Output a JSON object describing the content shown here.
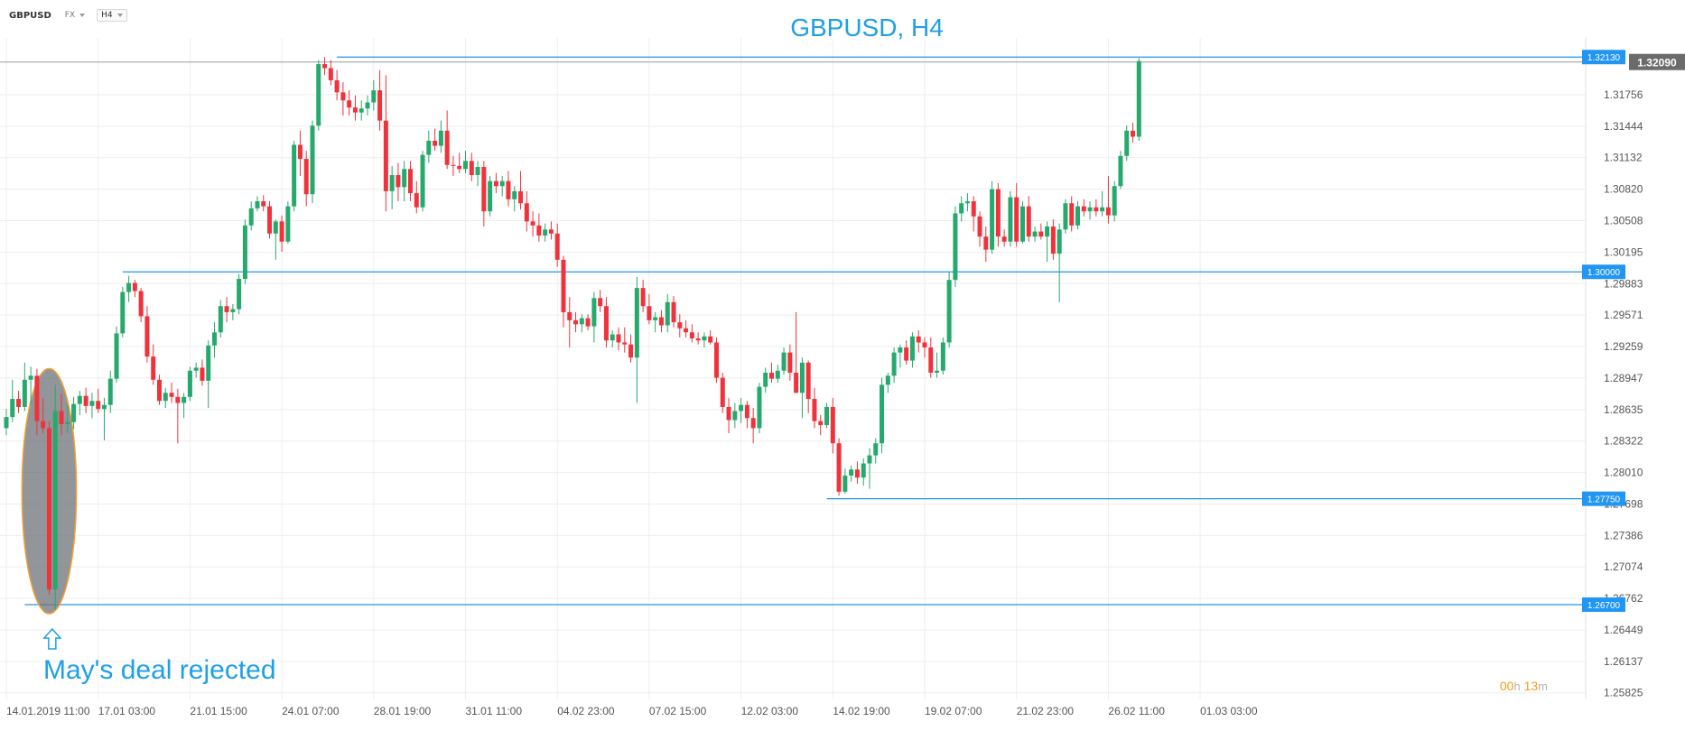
{
  "toolbar": {
    "symbol": "GBPUSD",
    "market": "FX",
    "timeframe": "H4"
  },
  "countdown": {
    "hours": "00",
    "hours_unit": "h",
    "minutes": "13",
    "minutes_unit": "m"
  },
  "colors": {
    "bull": "#26a96c",
    "bear": "#f0323c",
    "level": "#2196f3",
    "title": "#1ea0e6",
    "grid": "#eeeeee",
    "axis_text": "#555555",
    "highlight_fill": "#6e7378",
    "highlight_stroke": "#f0a030"
  },
  "chart_data": {
    "type": "candlestick",
    "title": "GBPUSD, H4",
    "xlabel": "",
    "ylabel": "",
    "ylim": [
      1.2576,
      1.3232
    ],
    "grid": true,
    "y_ticks": [
      "1.31756",
      "1.31444",
      "1.31132",
      "1.30820",
      "1.30508",
      "1.30195",
      "1.29883",
      "1.29571",
      "1.29259",
      "1.28947",
      "1.28635",
      "1.28322",
      "1.28010",
      "1.27698",
      "1.27386",
      "1.27074",
      "1.26762",
      "1.26449",
      "1.26137",
      "1.25825"
    ],
    "x_ticks": [
      {
        "i": 0,
        "label": "14.01.2019  11:00"
      },
      {
        "i": 15,
        "label": "17.01  03:00"
      },
      {
        "i": 30,
        "label": "21.01  15:00"
      },
      {
        "i": 45,
        "label": "24.01  07:00"
      },
      {
        "i": 60,
        "label": "28.01  19:00"
      },
      {
        "i": 75,
        "label": "31.01  11:00"
      },
      {
        "i": 90,
        "label": "04.02  23:00"
      },
      {
        "i": 105,
        "label": "07.02  15:00"
      },
      {
        "i": 120,
        "label": "12.02  03:00"
      },
      {
        "i": 135,
        "label": "14.02  19:00"
      },
      {
        "i": 150,
        "label": "19.02  07:00"
      },
      {
        "i": 165,
        "label": "21.02  23:00"
      },
      {
        "i": 180,
        "label": "26.02  11:00"
      },
      {
        "i": 195,
        "label": "01.03  03:00"
      }
    ],
    "current_price": {
      "label": "1.32090",
      "value": 1.3209
    },
    "levels": [
      {
        "value": 1.3213,
        "label": "1.32130",
        "from_i": 54
      },
      {
        "value": 1.3,
        "label": "1.30000",
        "from_i": 19
      },
      {
        "value": 1.2775,
        "label": "1.27750",
        "from_i": 134
      },
      {
        "value": 1.267,
        "label": "1.26700",
        "from_i": 3
      }
    ],
    "annotation": {
      "text": "May's deal rejected",
      "i_from": 3,
      "i_to": 11,
      "y_top": 1.2904,
      "y_bottom": 1.2661,
      "arrow_i": 7.5
    },
    "candles": [
      [
        1.2845,
        1.2864,
        1.2838,
        1.2856
      ],
      [
        1.2856,
        1.2893,
        1.2851,
        1.2874
      ],
      [
        1.2874,
        1.2882,
        1.286,
        1.2866
      ],
      [
        1.2866,
        1.291,
        1.2862,
        1.2893
      ],
      [
        1.2893,
        1.2906,
        1.2868,
        1.2897
      ],
      [
        1.2897,
        1.2904,
        1.2838,
        1.2852
      ],
      [
        1.2852,
        1.2875,
        1.284,
        1.2845
      ],
      [
        1.2845,
        1.2852,
        1.268,
        1.2685
      ],
      [
        1.2685,
        1.2888,
        1.2665,
        1.2862
      ],
      [
        1.2862,
        1.2879,
        1.2838,
        1.2849
      ],
      [
        1.2849,
        1.2868,
        1.284,
        1.2851
      ],
      [
        1.2851,
        1.2876,
        1.2844,
        1.2869
      ],
      [
        1.2869,
        1.2882,
        1.2858,
        1.2877
      ],
      [
        1.2877,
        1.2885,
        1.286,
        1.2867
      ],
      [
        1.2867,
        1.288,
        1.2855,
        1.2872
      ],
      [
        1.2872,
        1.2884,
        1.286,
        1.2864
      ],
      [
        1.2864,
        1.2875,
        1.2833,
        1.2868
      ],
      [
        1.2868,
        1.2902,
        1.286,
        1.2894
      ],
      [
        1.2894,
        1.2946,
        1.289,
        1.2939
      ],
      [
        1.2939,
        1.2985,
        1.2935,
        1.298
      ],
      [
        1.298,
        1.2996,
        1.297,
        1.2989
      ],
      [
        1.2989,
        1.2992,
        1.2975,
        1.2981
      ],
      [
        1.2981,
        1.2984,
        1.295,
        1.2956
      ],
      [
        1.2956,
        1.2966,
        1.291,
        1.2916
      ],
      [
        1.2916,
        1.2928,
        1.2888,
        1.2893
      ],
      [
        1.2893,
        1.2898,
        1.2868,
        1.2872
      ],
      [
        1.2872,
        1.2885,
        1.2865,
        1.288
      ],
      [
        1.288,
        1.289,
        1.287,
        1.2876
      ],
      [
        1.2876,
        1.2884,
        1.283,
        1.287
      ],
      [
        1.287,
        1.288,
        1.2855,
        1.2876
      ],
      [
        1.2876,
        1.2906,
        1.2872,
        1.2902
      ],
      [
        1.2902,
        1.291,
        1.2895,
        1.2905
      ],
      [
        1.2905,
        1.2913,
        1.2887,
        1.2892
      ],
      [
        1.2892,
        1.2932,
        1.2865,
        1.2927
      ],
      [
        1.2927,
        1.295,
        1.2915,
        1.294
      ],
      [
        1.294,
        1.2972,
        1.2935,
        1.2966
      ],
      [
        1.2966,
        1.2975,
        1.295,
        1.296
      ],
      [
        1.296,
        1.2968,
        1.2952,
        1.2963
      ],
      [
        1.2963,
        1.2998,
        1.2958,
        1.2993
      ],
      [
        1.2993,
        1.3052,
        1.2988,
        1.3046
      ],
      [
        1.3046,
        1.307,
        1.3041,
        1.3063
      ],
      [
        1.3063,
        1.3075,
        1.306,
        1.307
      ],
      [
        1.307,
        1.3076,
        1.306,
        1.3065
      ],
      [
        1.3065,
        1.307,
        1.3033,
        1.3038
      ],
      [
        1.3038,
        1.3052,
        1.3012,
        1.305
      ],
      [
        1.305,
        1.3056,
        1.302,
        1.303
      ],
      [
        1.303,
        1.307,
        1.3028,
        1.3065
      ],
      [
        1.3065,
        1.313,
        1.306,
        1.3126
      ],
      [
        1.3126,
        1.314,
        1.3095,
        1.3112
      ],
      [
        1.3112,
        1.312,
        1.3065,
        1.3077
      ],
      [
        1.3077,
        1.315,
        1.3068,
        1.3145
      ],
      [
        1.3145,
        1.321,
        1.314,
        1.3206
      ],
      [
        1.3206,
        1.3213,
        1.3195,
        1.3202
      ],
      [
        1.3202,
        1.321,
        1.3185,
        1.319
      ],
      [
        1.319,
        1.32,
        1.317,
        1.3178
      ],
      [
        1.3178,
        1.3188,
        1.3155,
        1.317
      ],
      [
        1.317,
        1.318,
        1.3155,
        1.3163
      ],
      [
        1.3163,
        1.3175,
        1.315,
        1.3158
      ],
      [
        1.3158,
        1.317,
        1.315,
        1.3162
      ],
      [
        1.3162,
        1.3175,
        1.3155,
        1.3168
      ],
      [
        1.3168,
        1.319,
        1.316,
        1.318
      ],
      [
        1.318,
        1.32,
        1.314,
        1.315
      ],
      [
        1.315,
        1.3195,
        1.306,
        1.308
      ],
      [
        1.308,
        1.3105,
        1.3062,
        1.3096
      ],
      [
        1.3096,
        1.3108,
        1.307,
        1.3084
      ],
      [
        1.3084,
        1.311,
        1.307,
        1.3102
      ],
      [
        1.3102,
        1.311,
        1.307,
        1.3078
      ],
      [
        1.3078,
        1.309,
        1.3058,
        1.3064
      ],
      [
        1.3064,
        1.312,
        1.306,
        1.3116
      ],
      [
        1.3116,
        1.314,
        1.3108,
        1.313
      ],
      [
        1.313,
        1.3142,
        1.312,
        1.3125
      ],
      [
        1.3125,
        1.315,
        1.3118,
        1.314
      ],
      [
        1.314,
        1.316,
        1.3102,
        1.3106
      ],
      [
        1.3106,
        1.3115,
        1.3095,
        1.3105
      ],
      [
        1.3105,
        1.3118,
        1.3098,
        1.3102
      ],
      [
        1.3102,
        1.312,
        1.3098,
        1.311
      ],
      [
        1.311,
        1.3118,
        1.309,
        1.3096
      ],
      [
        1.3096,
        1.311,
        1.3085,
        1.3104
      ],
      [
        1.3104,
        1.311,
        1.3045,
        1.306
      ],
      [
        1.306,
        1.3095,
        1.3055,
        1.309
      ],
      [
        1.309,
        1.3098,
        1.3078,
        1.3085
      ],
      [
        1.3085,
        1.3095,
        1.3075,
        1.309
      ],
      [
        1.309,
        1.31,
        1.3065,
        1.3072
      ],
      [
        1.3072,
        1.3085,
        1.306,
        1.308
      ],
      [
        1.308,
        1.31,
        1.3062,
        1.3068
      ],
      [
        1.3068,
        1.308,
        1.304,
        1.305
      ],
      [
        1.305,
        1.306,
        1.3035,
        1.3046
      ],
      [
        1.3046,
        1.3058,
        1.303,
        1.3036
      ],
      [
        1.3036,
        1.3048,
        1.303,
        1.3042
      ],
      [
        1.3042,
        1.305,
        1.3032,
        1.3038
      ],
      [
        1.3038,
        1.3048,
        1.3005,
        1.3012
      ],
      [
        1.3012,
        1.3016,
        1.2945,
        1.296
      ],
      [
        1.296,
        1.2975,
        1.2925,
        1.2952
      ],
      [
        1.2952,
        1.296,
        1.294,
        1.2948
      ],
      [
        1.2948,
        1.2958,
        1.294,
        1.2954
      ],
      [
        1.2954,
        1.2958,
        1.2942,
        1.2946
      ],
      [
        1.2946,
        1.298,
        1.293,
        1.2974
      ],
      [
        1.2974,
        1.2982,
        1.296,
        1.2966
      ],
      [
        1.2966,
        1.2975,
        1.2925,
        1.2932
      ],
      [
        1.2932,
        1.2942,
        1.2925,
        1.2938
      ],
      [
        1.2938,
        1.2945,
        1.2922,
        1.293
      ],
      [
        1.293,
        1.2945,
        1.292,
        1.2928
      ],
      [
        1.2928,
        1.2938,
        1.291,
        1.2915
      ],
      [
        1.2915,
        1.2995,
        1.287,
        1.2984
      ],
      [
        1.2984,
        1.2992,
        1.296,
        1.2966
      ],
      [
        1.2966,
        1.2978,
        1.2948,
        1.2952
      ],
      [
        1.2952,
        1.296,
        1.294,
        1.2955
      ],
      [
        1.2955,
        1.2962,
        1.294,
        1.2947
      ],
      [
        1.2947,
        1.2978,
        1.294,
        1.297
      ],
      [
        1.297,
        1.2976,
        1.2945,
        1.295
      ],
      [
        1.295,
        1.2958,
        1.2935,
        1.2944
      ],
      [
        1.2944,
        1.2952,
        1.2935,
        1.294
      ],
      [
        1.294,
        1.2948,
        1.293,
        1.2934
      ],
      [
        1.2934,
        1.294,
        1.2928,
        1.2932
      ],
      [
        1.2932,
        1.294,
        1.2925,
        1.2936
      ],
      [
        1.2936,
        1.2942,
        1.2928,
        1.293
      ],
      [
        1.293,
        1.2935,
        1.289,
        1.2895
      ],
      [
        1.2895,
        1.29,
        1.286,
        1.2866
      ],
      [
        1.2866,
        1.2875,
        1.284,
        1.2853
      ],
      [
        1.2853,
        1.287,
        1.2845,
        1.2862
      ],
      [
        1.2862,
        1.2875,
        1.285,
        1.2868
      ],
      [
        1.2868,
        1.2872,
        1.2845,
        1.2855
      ],
      [
        1.2855,
        1.2865,
        1.283,
        1.2845
      ],
      [
        1.2845,
        1.289,
        1.284,
        1.2886
      ],
      [
        1.2886,
        1.2905,
        1.288,
        1.29
      ],
      [
        1.29,
        1.291,
        1.289,
        1.2894
      ],
      [
        1.2894,
        1.2908,
        1.289,
        1.2902
      ],
      [
        1.2902,
        1.2925,
        1.2898,
        1.292
      ],
      [
        1.292,
        1.2928,
        1.2892,
        1.29
      ],
      [
        1.29,
        1.296,
        1.288,
        1.288
      ],
      [
        1.288,
        1.2915,
        1.2855,
        1.291
      ],
      [
        1.291,
        1.2912,
        1.286,
        1.2874
      ],
      [
        1.2874,
        1.2885,
        1.2845,
        1.2852
      ],
      [
        1.2852,
        1.2858,
        1.2838,
        1.2848
      ],
      [
        1.2848,
        1.287,
        1.2845,
        1.2866
      ],
      [
        1.2866,
        1.2875,
        1.282,
        1.283
      ],
      [
        1.283,
        1.2835,
        1.2778,
        1.2782
      ],
      [
        1.2782,
        1.2805,
        1.278,
        1.2798
      ],
      [
        1.2798,
        1.2808,
        1.2792,
        1.2804
      ],
      [
        1.2804,
        1.2812,
        1.279,
        1.2796
      ],
      [
        1.2796,
        1.2815,
        1.2788,
        1.281
      ],
      [
        1.281,
        1.2825,
        1.2785,
        1.2818
      ],
      [
        1.2818,
        1.2835,
        1.281,
        1.283
      ],
      [
        1.283,
        1.2895,
        1.282,
        1.2888
      ],
      [
        1.2888,
        1.29,
        1.288,
        1.2897
      ],
      [
        1.2897,
        1.2925,
        1.289,
        1.292
      ],
      [
        1.292,
        1.2928,
        1.2905,
        1.2925
      ],
      [
        1.2925,
        1.2932,
        1.2908,
        1.2912
      ],
      [
        1.2912,
        1.294,
        1.2905,
        1.2936
      ],
      [
        1.2936,
        1.2942,
        1.292,
        1.293
      ],
      [
        1.293,
        1.2935,
        1.2915,
        1.2925
      ],
      [
        1.2925,
        1.2935,
        1.2895,
        1.29
      ],
      [
        1.29,
        1.292,
        1.2895,
        1.2902
      ],
      [
        1.2902,
        1.2935,
        1.2898,
        1.293
      ],
      [
        1.293,
        1.3,
        1.2925,
        1.2992
      ],
      [
        1.2992,
        1.3065,
        1.2985,
        1.3058
      ],
      [
        1.3058,
        1.3075,
        1.305,
        1.3068
      ],
      [
        1.3068,
        1.3078,
        1.306,
        1.307
      ],
      [
        1.307,
        1.3075,
        1.304,
        1.3055
      ],
      [
        1.3055,
        1.306,
        1.3025,
        1.3035
      ],
      [
        1.3035,
        1.3045,
        1.301,
        1.3022
      ],
      [
        1.3022,
        1.309,
        1.3018,
        1.3082
      ],
      [
        1.3082,
        1.3088,
        1.3025,
        1.3035
      ],
      [
        1.3035,
        1.3042,
        1.3025,
        1.303
      ],
      [
        1.303,
        1.308,
        1.3025,
        1.3074
      ],
      [
        1.3074,
        1.3088,
        1.3025,
        1.303
      ],
      [
        1.303,
        1.307,
        1.3028,
        1.3065
      ],
      [
        1.3065,
        1.3075,
        1.303,
        1.3035
      ],
      [
        1.3035,
        1.3045,
        1.303,
        1.304
      ],
      [
        1.304,
        1.3048,
        1.3032,
        1.3035
      ],
      [
        1.3035,
        1.305,
        1.301,
        1.3045
      ],
      [
        1.3045,
        1.3052,
        1.3012,
        1.3018
      ],
      [
        1.3018,
        1.3048,
        1.297,
        1.3042
      ],
      [
        1.3042,
        1.3072,
        1.3038,
        1.3068
      ],
      [
        1.3068,
        1.3075,
        1.304,
        1.3046
      ],
      [
        1.3046,
        1.307,
        1.3042,
        1.3065
      ],
      [
        1.3065,
        1.3072,
        1.3055,
        1.306
      ],
      [
        1.306,
        1.307,
        1.3052,
        1.3064
      ],
      [
        1.3064,
        1.3072,
        1.3055,
        1.306
      ],
      [
        1.306,
        1.308,
        1.3055,
        1.3064
      ],
      [
        1.3064,
        1.3095,
        1.3048,
        1.3056
      ],
      [
        1.3056,
        1.309,
        1.305,
        1.3085
      ],
      [
        1.3085,
        1.312,
        1.3082,
        1.3115
      ],
      [
        1.3115,
        1.3145,
        1.311,
        1.314
      ],
      [
        1.314,
        1.3148,
        1.3128,
        1.3134
      ],
      [
        1.3134,
        1.3212,
        1.313,
        1.3209
      ]
    ]
  }
}
